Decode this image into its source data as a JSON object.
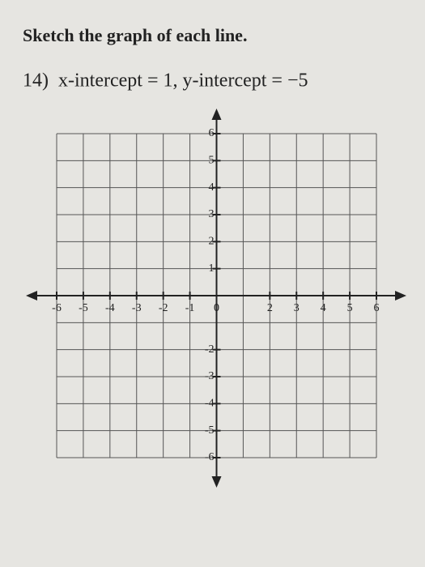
{
  "header": {
    "title": "Sketch the graph of each line."
  },
  "problem": {
    "number": "14)",
    "text": "x-intercept = 1, y-intercept = −5"
  },
  "grid": {
    "xlim": [
      -6,
      6
    ],
    "ylim": [
      -6,
      6
    ],
    "xticks": [
      -6,
      -5,
      -4,
      -3,
      -2,
      -1,
      0,
      2,
      3,
      4,
      5,
      6
    ],
    "yticks": [
      6,
      5,
      4,
      3,
      2,
      1,
      -2,
      -3,
      -4,
      -5,
      -6
    ]
  }
}
